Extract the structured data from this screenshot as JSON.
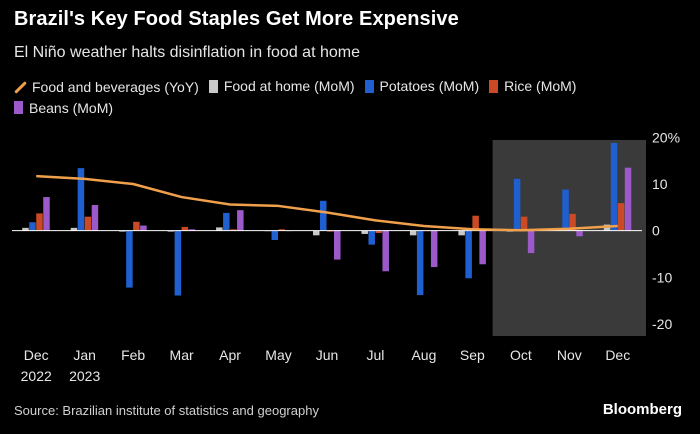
{
  "title": "Brazil's Key Food Staples Get More Expensive",
  "subtitle": "El Niño weather halts disinflation in food at home",
  "source": "Source: Brazilian institute of statistics and geography",
  "brand": "Bloomberg",
  "chart_data": {
    "type": "bar",
    "categories": [
      "Dec 2022",
      "Jan 2023",
      "Feb",
      "Mar",
      "Apr",
      "May",
      "Jun",
      "Jul",
      "Aug",
      "Sep",
      "Oct",
      "Nov",
      "Dec"
    ],
    "tick_labels": [
      {
        "line1": "Dec",
        "line2": "2022"
      },
      {
        "line1": "Jan",
        "line2": "2023"
      },
      {
        "line1": "Feb",
        "line2": ""
      },
      {
        "line1": "Mar",
        "line2": ""
      },
      {
        "line1": "Apr",
        "line2": ""
      },
      {
        "line1": "May",
        "line2": ""
      },
      {
        "line1": "Jun",
        "line2": ""
      },
      {
        "line1": "Jul",
        "line2": ""
      },
      {
        "line1": "Aug",
        "line2": ""
      },
      {
        "line1": "Sep",
        "line2": ""
      },
      {
        "line1": "Oct",
        "line2": ""
      },
      {
        "line1": "Nov",
        "line2": ""
      },
      {
        "line1": "Dec",
        "line2": ""
      }
    ],
    "series": [
      {
        "name": "Food and beverages (YoY)",
        "kind": "line",
        "color": "#f0a04b",
        "values": [
          11.7,
          11.1,
          10.0,
          7.2,
          5.6,
          5.3,
          3.9,
          2.2,
          1.0,
          0.3,
          0.1,
          0.4,
          1.0
        ]
      },
      {
        "name": "Food at home (MoM)",
        "kind": "bar",
        "color": "#c8c8c8",
        "values": [
          0.6,
          0.6,
          -0.2,
          -0.2,
          0.7,
          -0.1,
          -1.0,
          -0.7,
          -1.0,
          -1.0,
          -0.2,
          0.3,
          1.3
        ]
      },
      {
        "name": "Potatoes (MoM)",
        "kind": "bar",
        "color": "#1f5fd0",
        "values": [
          1.8,
          13.4,
          -12.2,
          -13.9,
          3.8,
          -2.0,
          6.4,
          -3.0,
          -13.8,
          -10.2,
          11.1,
          8.8,
          18.8
        ]
      },
      {
        "name": "Rice (MoM)",
        "kind": "bar",
        "color": "#c94a24",
        "values": [
          3.7,
          3.0,
          1.9,
          0.8,
          0.3,
          0.3,
          -0.2,
          -0.5,
          0.0,
          3.2,
          3.0,
          3.6,
          5.9
        ]
      },
      {
        "name": "Beans (MoM)",
        "kind": "bar",
        "color": "#9b59c9",
        "values": [
          7.2,
          5.5,
          1.1,
          0.3,
          4.4,
          -0.1,
          -6.2,
          -8.7,
          -7.8,
          -7.2,
          -4.8,
          -1.2,
          13.5
        ]
      }
    ],
    "y_ticks": [
      20,
      10,
      0,
      -10,
      -20
    ],
    "y_tick_labels": [
      "20%",
      "10",
      "0",
      "-10",
      "-20"
    ],
    "ylim": [
      -23,
      22
    ],
    "highlight_range": [
      "Oct",
      "Dec"
    ],
    "legend_position": "top",
    "grid": false,
    "colors": {
      "background": "#000000",
      "highlight": "#3a3a3a",
      "zero_line": "#ffffff",
      "text": "#e6e6e6"
    }
  }
}
